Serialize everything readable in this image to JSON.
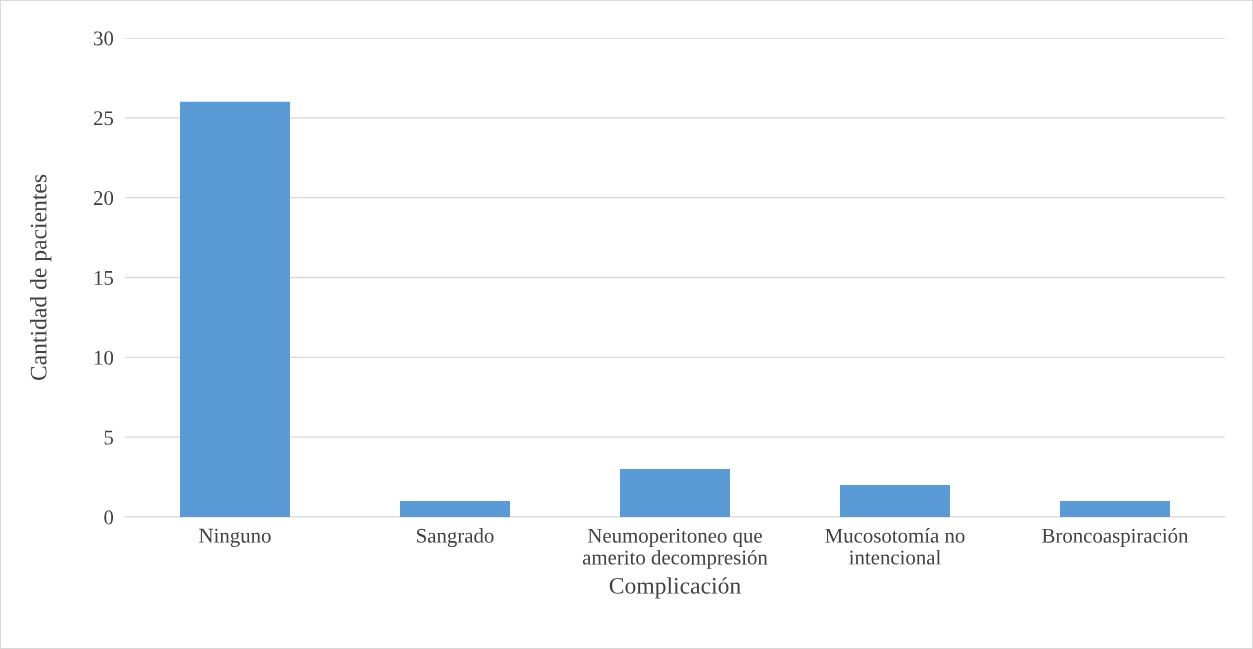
{
  "chart_data": {
    "type": "bar",
    "xlabel": "Complicación",
    "ylabel": "Cantidad de pacientes",
    "categories": [
      "Ninguno",
      "Sangrado",
      "Neumoperitoneo que\namerito decompresión",
      "Mucosotomía no\nintencional",
      "Broncoaspiración"
    ],
    "values": [
      26,
      1,
      3,
      2,
      1
    ],
    "color": "#5b9bd5",
    "ylim": [
      0,
      30
    ],
    "yticks": [
      0,
      5,
      10,
      15,
      20,
      25,
      30
    ],
    "grid": "y",
    "legend": false
  }
}
